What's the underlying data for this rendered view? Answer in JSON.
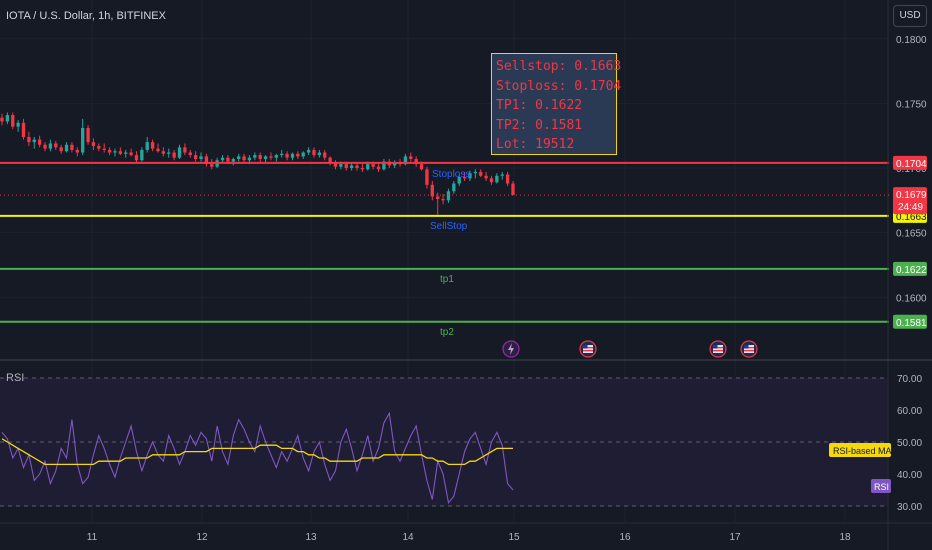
{
  "header": {
    "symbol_line": "IOTA / U.S. Dollar, 1h, BITFINEX",
    "currency_button": "USD"
  },
  "info_box": {
    "lines": [
      "Sellstop: 0.1663",
      "Stoploss: 0.1704",
      "TP1: 0.1622",
      "TP2: 0.1581",
      "Lot: 19512"
    ],
    "border_color": "#f2d400",
    "text_color": "#f23645"
  },
  "levels": [
    {
      "name": "stoploss",
      "price": 0.1704,
      "label": "0.1704",
      "line_text": "Stoploss",
      "color": "#f23645"
    },
    {
      "name": "sellstop",
      "price": 0.1663,
      "label": "0.1663",
      "line_text": "SellStop",
      "color": "#f5f500"
    },
    {
      "name": "tp1",
      "price": 0.1622,
      "label": "0.1622",
      "line_text": "tp1",
      "color": "#4caf50"
    },
    {
      "name": "tp2",
      "price": 0.1581,
      "label": "0.1581",
      "line_text": "tp2",
      "color": "#4caf50"
    }
  ],
  "current_price": {
    "price": 0.1679,
    "label": "0.1679",
    "countdown": "24:49",
    "color": "#f23645"
  },
  "price_axis": {
    "ticks": [
      {
        "value": 0.18,
        "label": "0.1800"
      },
      {
        "value": 0.175,
        "label": "0.1750"
      },
      {
        "value": 0.17,
        "label": "0.1700"
      },
      {
        "value": 0.165,
        "label": "0.1650"
      },
      {
        "value": 0.16,
        "label": "0.1600"
      }
    ]
  },
  "time_axis": {
    "labels": [
      "11",
      "12",
      "13",
      "14",
      "15",
      "16",
      "17",
      "18"
    ]
  },
  "rsi_panel": {
    "title": "RSI",
    "ticks": [
      {
        "value": 70,
        "label": "70.00"
      },
      {
        "value": 60,
        "label": "60.00"
      },
      {
        "value": 50,
        "label": "50.00"
      },
      {
        "value": 40,
        "label": "40.00"
      },
      {
        "value": 30,
        "label": "30.00"
      }
    ],
    "ma_badge": "RSI-based MA",
    "rsi_badge": "RSI",
    "rsi_color": "#7e57c2",
    "ma_color": "#f5d90a"
  },
  "chart_data": {
    "type": "candlestick",
    "title": "IOTA / U.S. Dollar, 1h, BITFINEX",
    "price_range": [
      0.1553,
      0.183
    ],
    "up_color": "#26a69a",
    "down_color": "#f23645",
    "candles": [
      [
        0.1739,
        0.1742,
        0.1733,
        0.1736
      ],
      [
        0.1736,
        0.1743,
        0.1734,
        0.1741
      ],
      [
        0.1741,
        0.1743,
        0.173,
        0.1732
      ],
      [
        0.1732,
        0.1737,
        0.1728,
        0.1735
      ],
      [
        0.1735,
        0.1738,
        0.1722,
        0.1724
      ],
      [
        0.1724,
        0.1728,
        0.1717,
        0.172
      ],
      [
        0.172,
        0.1724,
        0.1715,
        0.1722
      ],
      [
        0.1722,
        0.1725,
        0.1716,
        0.1718
      ],
      [
        0.1718,
        0.172,
        0.1713,
        0.1715
      ],
      [
        0.1715,
        0.1722,
        0.1713,
        0.1719
      ],
      [
        0.1719,
        0.1721,
        0.1714,
        0.1716
      ],
      [
        0.1716,
        0.1718,
        0.1711,
        0.1713
      ],
      [
        0.1713,
        0.172,
        0.1712,
        0.1718
      ],
      [
        0.1718,
        0.172,
        0.1712,
        0.1714
      ],
      [
        0.1714,
        0.1716,
        0.1709,
        0.1712
      ],
      [
        0.1712,
        0.1738,
        0.171,
        0.1731
      ],
      [
        0.1731,
        0.1733,
        0.1718,
        0.172
      ],
      [
        0.172,
        0.1723,
        0.1714,
        0.1717
      ],
      [
        0.1717,
        0.1719,
        0.1713,
        0.1715
      ],
      [
        0.1715,
        0.1719,
        0.1712,
        0.1714
      ],
      [
        0.1714,
        0.1716,
        0.171,
        0.1712
      ],
      [
        0.1712,
        0.1715,
        0.1709,
        0.1713
      ],
      [
        0.1713,
        0.1716,
        0.171,
        0.1711
      ],
      [
        0.1711,
        0.1714,
        0.1708,
        0.1712
      ],
      [
        0.1712,
        0.1715,
        0.1709,
        0.171
      ],
      [
        0.171,
        0.1713,
        0.1704,
        0.1706
      ],
      [
        0.1706,
        0.1716,
        0.1705,
        0.1714
      ],
      [
        0.1714,
        0.1724,
        0.1712,
        0.172
      ],
      [
        0.172,
        0.1722,
        0.1713,
        0.1715
      ],
      [
        0.1715,
        0.1719,
        0.1712,
        0.1713
      ],
      [
        0.1713,
        0.1716,
        0.1709,
        0.1711
      ],
      [
        0.1711,
        0.1715,
        0.1708,
        0.1712
      ],
      [
        0.1712,
        0.1714,
        0.1706,
        0.1708
      ],
      [
        0.1708,
        0.1718,
        0.1707,
        0.1716
      ],
      [
        0.1716,
        0.1719,
        0.171,
        0.1712
      ],
      [
        0.1712,
        0.1714,
        0.1708,
        0.171
      ],
      [
        0.171,
        0.1713,
        0.1705,
        0.1707
      ],
      [
        0.1707,
        0.1712,
        0.1705,
        0.1709
      ],
      [
        0.1709,
        0.1711,
        0.1701,
        0.1703
      ],
      [
        0.1703,
        0.1707,
        0.1699,
        0.1701
      ],
      [
        0.1701,
        0.1708,
        0.17,
        0.1706
      ],
      [
        0.1706,
        0.171,
        0.1704,
        0.1708
      ],
      [
        0.1708,
        0.171,
        0.1703,
        0.1705
      ],
      [
        0.1705,
        0.1708,
        0.1702,
        0.1707
      ],
      [
        0.1707,
        0.1711,
        0.1705,
        0.1709
      ],
      [
        0.1709,
        0.1711,
        0.1704,
        0.1706
      ],
      [
        0.1706,
        0.171,
        0.1703,
        0.1708
      ],
      [
        0.1708,
        0.1712,
        0.1706,
        0.171
      ],
      [
        0.171,
        0.1712,
        0.1704,
        0.1707
      ],
      [
        0.1707,
        0.171,
        0.1704,
        0.1709
      ],
      [
        0.1709,
        0.1712,
        0.1706,
        0.1708
      ],
      [
        0.1708,
        0.1711,
        0.1705,
        0.171
      ],
      [
        0.171,
        0.1714,
        0.1708,
        0.1711
      ],
      [
        0.1711,
        0.1713,
        0.1706,
        0.1708
      ],
      [
        0.1708,
        0.1712,
        0.1706,
        0.1711
      ],
      [
        0.1711,
        0.1713,
        0.1707,
        0.1709
      ],
      [
        0.1709,
        0.1713,
        0.1707,
        0.1712
      ],
      [
        0.1712,
        0.1716,
        0.171,
        0.1714
      ],
      [
        0.1714,
        0.1716,
        0.1708,
        0.171
      ],
      [
        0.171,
        0.1714,
        0.1708,
        0.1712
      ],
      [
        0.1712,
        0.1714,
        0.1706,
        0.1708
      ],
      [
        0.1708,
        0.1709,
        0.1702,
        0.1704
      ],
      [
        0.1704,
        0.1706,
        0.1699,
        0.1701
      ],
      [
        0.1701,
        0.1705,
        0.1699,
        0.1703
      ],
      [
        0.1703,
        0.1705,
        0.1698,
        0.17
      ],
      [
        0.17,
        0.1704,
        0.1698,
        0.1702
      ],
      [
        0.1702,
        0.1704,
        0.1698,
        0.17
      ],
      [
        0.17,
        0.1703,
        0.1697,
        0.1699
      ],
      [
        0.1699,
        0.1705,
        0.1698,
        0.1703
      ],
      [
        0.1703,
        0.1705,
        0.1699,
        0.1701
      ],
      [
        0.1701,
        0.1703,
        0.1697,
        0.1699
      ],
      [
        0.1699,
        0.1707,
        0.1698,
        0.1705
      ],
      [
        0.1705,
        0.1707,
        0.17,
        0.1702
      ],
      [
        0.1702,
        0.1706,
        0.17,
        0.1704
      ],
      [
        0.1704,
        0.1707,
        0.1701,
        0.1703
      ],
      [
        0.1703,
        0.1711,
        0.1702,
        0.1709
      ],
      [
        0.1709,
        0.1712,
        0.1705,
        0.1707
      ],
      [
        0.1707,
        0.1709,
        0.1701,
        0.1703
      ],
      [
        0.1703,
        0.1705,
        0.1698,
        0.1699
      ],
      [
        0.1699,
        0.1701,
        0.1684,
        0.1687
      ],
      [
        0.1687,
        0.169,
        0.1675,
        0.1678
      ],
      [
        0.1678,
        0.1681,
        0.1664,
        0.1676
      ],
      [
        0.1676,
        0.168,
        0.1672,
        0.1675
      ],
      [
        0.1675,
        0.1684,
        0.1673,
        0.1682
      ],
      [
        0.1682,
        0.169,
        0.168,
        0.1688
      ],
      [
        0.1688,
        0.1695,
        0.1686,
        0.1693
      ],
      [
        0.1693,
        0.1697,
        0.169,
        0.1692
      ],
      [
        0.1692,
        0.1698,
        0.169,
        0.1696
      ],
      [
        0.1696,
        0.1699,
        0.1692,
        0.1697
      ],
      [
        0.1697,
        0.1699,
        0.1693,
        0.1694
      ],
      [
        0.1694,
        0.1697,
        0.169,
        0.1692
      ],
      [
        0.1692,
        0.1694,
        0.1687,
        0.1689
      ],
      [
        0.1689,
        0.1696,
        0.1688,
        0.1694
      ],
      [
        0.1694,
        0.1697,
        0.1691,
        0.1695
      ],
      [
        0.1695,
        0.1697,
        0.1686,
        0.1688
      ],
      [
        0.1688,
        0.169,
        0.1679,
        0.1679
      ]
    ],
    "rsi_range": [
      25,
      75
    ],
    "rsi_values": [
      53,
      51,
      45,
      48,
      42,
      46,
      38,
      40,
      44,
      37,
      41,
      48,
      45,
      57,
      43,
      37,
      39,
      46,
      52,
      48,
      43,
      39,
      45,
      50,
      55,
      47,
      41,
      46,
      50,
      46,
      44,
      52,
      48,
      43,
      47,
      52,
      49,
      53,
      51,
      44,
      55,
      47,
      43,
      52,
      57,
      54,
      50,
      47,
      55,
      50,
      46,
      42,
      47,
      44,
      48,
      52,
      45,
      41,
      47,
      50,
      43,
      38,
      41,
      50,
      54,
      48,
      41,
      46,
      52,
      44,
      48,
      56,
      59,
      47,
      44,
      48,
      52,
      55,
      46,
      38,
      32,
      44,
      40,
      31,
      33,
      40,
      47,
      51,
      53,
      48,
      43,
      50,
      53,
      49,
      37,
      35
    ],
    "rsi_ma_values": [
      51,
      50,
      49,
      48,
      47,
      46,
      45,
      44,
      43,
      43,
      43,
      43,
      43,
      43,
      43,
      43,
      43,
      43,
      44,
      44,
      44,
      44,
      44,
      45,
      45,
      45,
      45,
      45,
      46,
      46,
      46,
      46,
      46,
      46,
      47,
      47,
      47,
      47,
      47,
      48,
      48,
      48,
      48,
      48,
      48,
      48,
      48,
      48,
      49,
      49,
      49,
      49,
      48,
      48,
      48,
      47,
      47,
      46,
      46,
      45,
      45,
      44,
      44,
      44,
      44,
      44,
      44,
      45,
      45,
      45,
      45,
      46,
      46,
      46,
      46,
      46,
      46,
      46,
      46,
      45,
      45,
      44,
      44,
      43,
      43,
      43,
      43,
      44,
      44,
      45,
      46,
      47,
      48,
      48,
      48,
      48
    ]
  },
  "events": [
    {
      "type": "lightning",
      "icon": "lightning-icon",
      "at": 0.53
    },
    {
      "type": "flag",
      "icon": "us-flag-icon",
      "at": 0.61
    },
    {
      "type": "flag",
      "icon": "us-flag-icon",
      "at": 0.745
    },
    {
      "type": "flag",
      "icon": "us-flag-icon",
      "at": 0.777
    }
  ]
}
